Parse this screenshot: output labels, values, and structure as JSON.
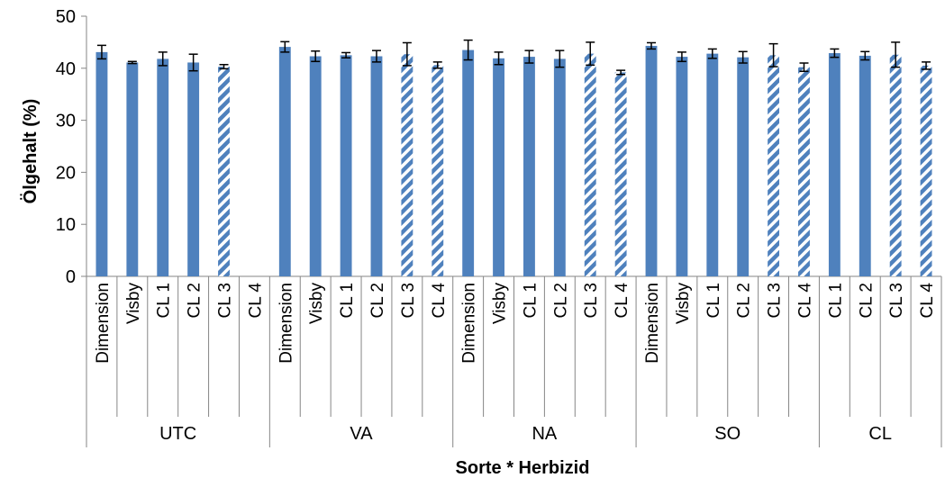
{
  "chart_data": {
    "type": "bar",
    "xlabel": "Sorte * Herbizid",
    "ylabel": "Ölgehalt (%)",
    "ylim": [
      0,
      50
    ],
    "yticks": [
      0,
      10,
      20,
      30,
      40,
      50
    ],
    "grid": false,
    "legend": "none",
    "colors": {
      "bar": "#4f81bd",
      "error": "#000000",
      "axis": "#868686"
    },
    "groups": [
      {
        "name": "UTC",
        "bars": [
          {
            "label": "Dimension",
            "value": 43.1,
            "err": 1.3,
            "pattern": "solid"
          },
          {
            "label": "Visby",
            "value": 41.1,
            "err": 0.2,
            "pattern": "solid"
          },
          {
            "label": "CL 1",
            "value": 41.8,
            "err": 1.3,
            "pattern": "solid"
          },
          {
            "label": "CL 2",
            "value": 41.1,
            "err": 1.6,
            "pattern": "solid"
          },
          {
            "label": "CL 3",
            "value": 40.3,
            "err": 0.4,
            "pattern": "hatched"
          },
          {
            "label": "CL 4",
            "value": null,
            "err": null,
            "pattern": "hatched"
          }
        ]
      },
      {
        "name": "VA",
        "bars": [
          {
            "label": "Dimension",
            "value": 44.1,
            "err": 1.0,
            "pattern": "solid"
          },
          {
            "label": "Visby",
            "value": 42.3,
            "err": 1.0,
            "pattern": "solid"
          },
          {
            "label": "CL 1",
            "value": 42.5,
            "err": 0.5,
            "pattern": "solid"
          },
          {
            "label": "CL 2",
            "value": 42.3,
            "err": 1.1,
            "pattern": "solid"
          },
          {
            "label": "CL 3",
            "value": 42.7,
            "err": 2.2,
            "pattern": "hatched"
          },
          {
            "label": "CL 4",
            "value": 40.6,
            "err": 0.6,
            "pattern": "hatched"
          }
        ]
      },
      {
        "name": "NA",
        "bars": [
          {
            "label": "Dimension",
            "value": 43.5,
            "err": 1.9,
            "pattern": "solid"
          },
          {
            "label": "Visby",
            "value": 41.9,
            "err": 1.2,
            "pattern": "solid"
          },
          {
            "label": "CL 1",
            "value": 42.2,
            "err": 1.2,
            "pattern": "solid"
          },
          {
            "label": "CL 2",
            "value": 41.8,
            "err": 1.6,
            "pattern": "solid"
          },
          {
            "label": "CL 3",
            "value": 42.8,
            "err": 2.2,
            "pattern": "hatched"
          },
          {
            "label": "CL 4",
            "value": 39.2,
            "err": 0.4,
            "pattern": "hatched"
          }
        ]
      },
      {
        "name": "SO",
        "bars": [
          {
            "label": "Dimension",
            "value": 44.3,
            "err": 0.6,
            "pattern": "solid"
          },
          {
            "label": "Visby",
            "value": 42.2,
            "err": 0.9,
            "pattern": "solid"
          },
          {
            "label": "CL 1",
            "value": 42.8,
            "err": 0.9,
            "pattern": "solid"
          },
          {
            "label": "CL 2",
            "value": 42.1,
            "err": 1.1,
            "pattern": "solid"
          },
          {
            "label": "CL 3",
            "value": 42.5,
            "err": 2.2,
            "pattern": "hatched"
          },
          {
            "label": "CL 4",
            "value": 40.2,
            "err": 0.8,
            "pattern": "hatched"
          }
        ]
      },
      {
        "name": "CL",
        "bars": [
          {
            "label": "CL 1",
            "value": 42.9,
            "err": 0.8,
            "pattern": "solid"
          },
          {
            "label": "CL 2",
            "value": 42.4,
            "err": 0.8,
            "pattern": "solid"
          },
          {
            "label": "CL 3",
            "value": 42.6,
            "err": 2.4,
            "pattern": "hatched"
          },
          {
            "label": "CL 4",
            "value": 40.5,
            "err": 0.7,
            "pattern": "hatched"
          }
        ]
      }
    ]
  }
}
